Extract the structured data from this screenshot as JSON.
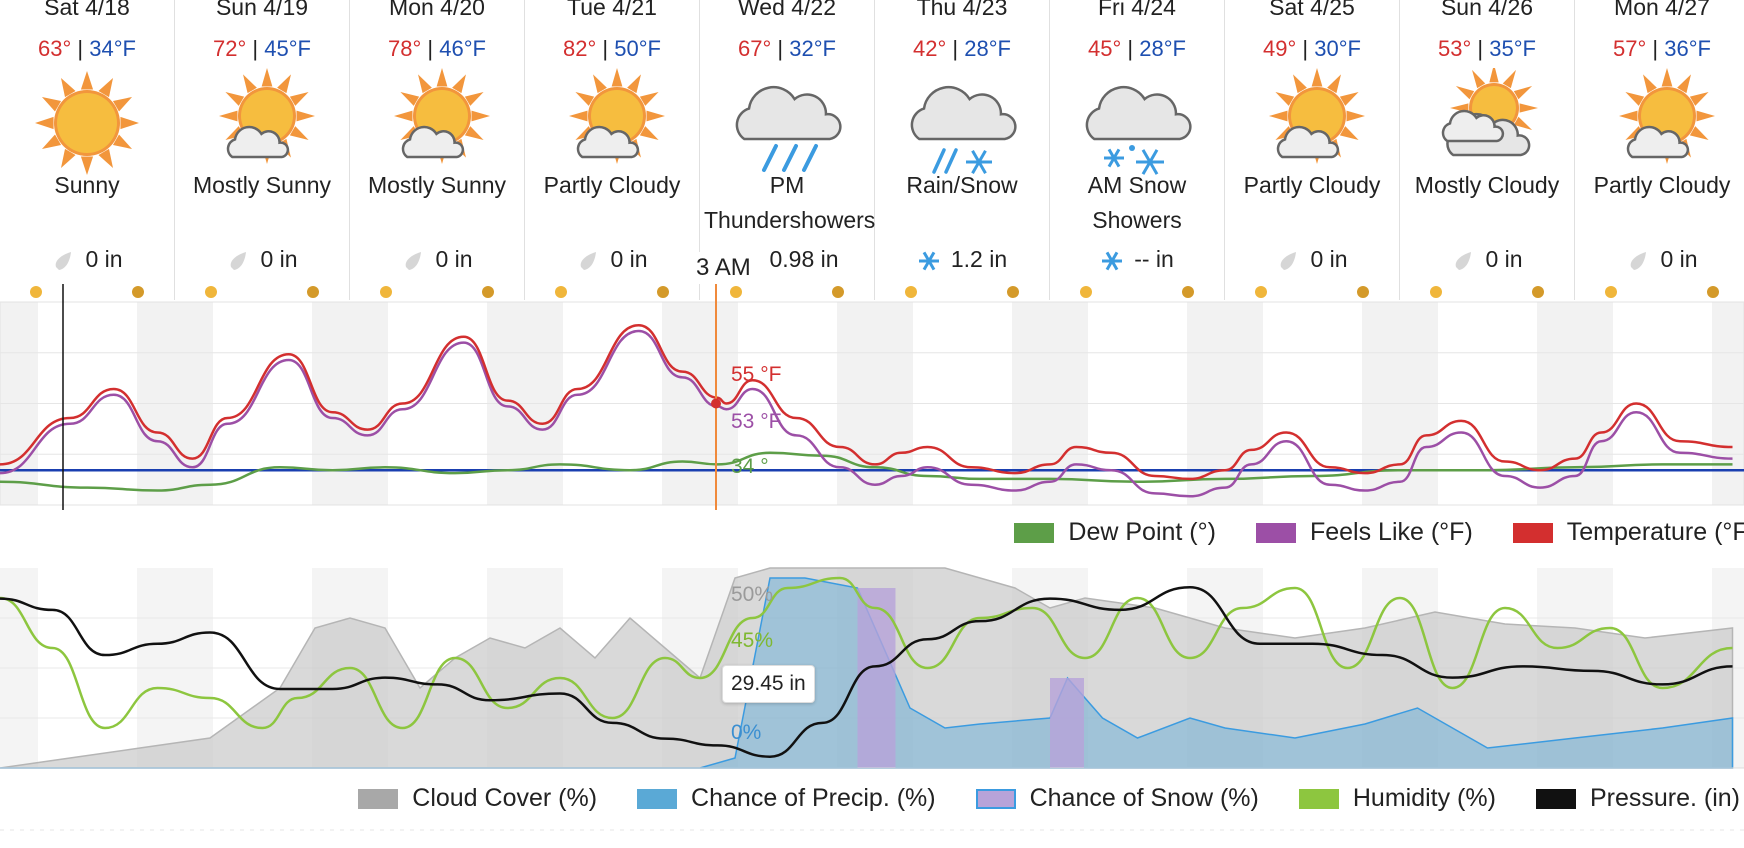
{
  "days": [
    {
      "date": "Sat 4/18",
      "hi": "63°",
      "lo": "34°F",
      "cond": "Sunny",
      "precip": "0 in",
      "icon": "sun-icon",
      "ptype": "rain"
    },
    {
      "date": "Sun 4/19",
      "hi": "72°",
      "lo": "45°F",
      "cond": "Mostly Sunny",
      "precip": "0 in",
      "icon": "sun-cloud-icon",
      "ptype": "rain"
    },
    {
      "date": "Mon 4/20",
      "hi": "78°",
      "lo": "46°F",
      "cond": "Mostly Sunny",
      "precip": "0 in",
      "icon": "sun-cloud-icon",
      "ptype": "rain"
    },
    {
      "date": "Tue 4/21",
      "hi": "82°",
      "lo": "50°F",
      "cond": "Partly Cloudy",
      "precip": "0 in",
      "icon": "sun-cloud-icon",
      "ptype": "rain"
    },
    {
      "date": "Wed 4/22",
      "hi": "67°",
      "lo": "32°F",
      "cond": "PM Thundershowers",
      "precip": "0.98 in",
      "icon": "rain-cloud-icon",
      "ptype": "rain"
    },
    {
      "date": "Thu 4/23",
      "hi": "42°",
      "lo": "28°F",
      "cond": "Rain/Snow",
      "precip": "1.2 in",
      "icon": "rain-snow-icon",
      "ptype": "snow"
    },
    {
      "date": "Fri 4/24",
      "hi": "45°",
      "lo": "28°F",
      "cond": "AM Snow Showers",
      "precip": "-- in",
      "icon": "snow-cloud-icon",
      "ptype": "snow"
    },
    {
      "date": "Sat 4/25",
      "hi": "49°",
      "lo": "30°F",
      "cond": "Partly Cloudy",
      "precip": "0 in",
      "icon": "sun-cloud-icon",
      "ptype": "rain"
    },
    {
      "date": "Sun 4/26",
      "hi": "53°",
      "lo": "35°F",
      "cond": "Mostly Cloudy",
      "precip": "0 in",
      "icon": "cloud-sun-icon",
      "ptype": "rain"
    },
    {
      "date": "Mon 4/27",
      "hi": "57°",
      "lo": "36°F",
      "cond": "Partly Cloudy",
      "precip": "0 in",
      "icon": "sun-cloud-icon",
      "ptype": "rain"
    }
  ],
  "cursor": {
    "time": "3 AM",
    "temp": "55 °F",
    "feels": "53 °F",
    "dew": "34 °",
    "cloud": "50%",
    "humidity": "45%",
    "precip": "0%",
    "pressure": "29.45 in"
  },
  "legend_top": [
    "Dew Point (°)",
    "Feels Like (°F)",
    "Temperature (°F)"
  ],
  "legend_bottom": [
    "Cloud Cover (%)",
    "Chance of Precip. (%)",
    "Chance of Snow (%)",
    "Humidity (%)",
    "Pressure. (in)"
  ],
  "colors": {
    "temp": "#d32f2f",
    "feels": "#9c4fa6",
    "dew": "#5d9e48",
    "freeze": "#1a3fb0",
    "cloud": "#c9c9c9",
    "precip": "#5aa9d6",
    "snow": "#b7a3d9",
    "humidity": "#8dc63f",
    "pressure": "#111111",
    "cursor": "#f08a3c"
  },
  "chart_data": [
    {
      "type": "line",
      "x_unit": "day index (0 = Sat 4/18 00:00)",
      "series": [
        {
          "name": "Temperature (°F)",
          "x": [
            0,
            0.4,
            0.65,
            0.9,
            1.1,
            1.3,
            1.65,
            1.9,
            2.1,
            2.3,
            2.65,
            2.9,
            3.1,
            3.3,
            3.65,
            3.9,
            4.1,
            4.15,
            4.3,
            4.55,
            4.8,
            5.0,
            5.15,
            5.3,
            5.55,
            5.8,
            6.0,
            6.15,
            6.35,
            6.6,
            6.8,
            7.0,
            7.15,
            7.35,
            7.6,
            7.8,
            8.0,
            8.15,
            8.35,
            8.6,
            8.8,
            9.0,
            9.15,
            9.35,
            9.6,
            9.9
          ],
          "y": [
            34,
            50,
            60,
            45,
            36,
            50,
            72,
            52,
            46,
            55,
            78,
            56,
            48,
            60,
            82,
            66,
            57,
            55,
            63,
            50,
            40,
            34,
            38,
            40,
            33,
            31,
            34,
            40,
            38,
            30,
            29,
            32,
            39,
            45,
            33,
            31,
            34,
            44,
            49,
            35,
            32,
            36,
            45,
            55,
            42,
            40
          ]
        },
        {
          "name": "Feels Like (°F)",
          "x": [
            0,
            0.4,
            0.65,
            0.9,
            1.1,
            1.3,
            1.65,
            1.9,
            2.1,
            2.3,
            2.65,
            2.9,
            3.1,
            3.3,
            3.65,
            3.9,
            4.1,
            4.15,
            4.3,
            4.55,
            4.8,
            5.0,
            5.15,
            5.3,
            5.55,
            5.8,
            6.0,
            6.15,
            6.35,
            6.6,
            6.8,
            7.0,
            7.15,
            7.35,
            7.6,
            7.8,
            8.0,
            8.15,
            8.35,
            8.6,
            8.8,
            9.0,
            9.15,
            9.35,
            9.6,
            9.9
          ],
          "y": [
            31,
            48,
            58,
            42,
            33,
            48,
            70,
            50,
            44,
            53,
            76,
            54,
            46,
            58,
            80,
            64,
            54,
            53,
            60,
            44,
            33,
            27,
            30,
            33,
            27,
            25,
            28,
            34,
            32,
            24,
            23,
            26,
            34,
            42,
            27,
            25,
            28,
            40,
            45,
            30,
            26,
            30,
            42,
            52,
            38,
            36
          ]
        },
        {
          "name": "Dew Point (°)",
          "x": [
            0,
            0.5,
            0.9,
            1.2,
            1.6,
            1.9,
            2.2,
            2.6,
            2.9,
            3.2,
            3.6,
            3.9,
            4.1,
            4.4,
            4.7,
            5.0,
            5.3,
            5.6,
            6.0,
            6.5,
            7.0,
            7.5,
            8.0,
            8.5,
            9.0,
            9.5,
            9.9
          ],
          "y": [
            28,
            26,
            25,
            27,
            33,
            32,
            33,
            31,
            32,
            34,
            32,
            35,
            34,
            38,
            37,
            33,
            30,
            29,
            29,
            28,
            29,
            30,
            32,
            32,
            33,
            34,
            34
          ]
        }
      ],
      "reference_line": {
        "name": "freezing",
        "y": 32
      },
      "ylim": [
        20,
        90
      ]
    },
    {
      "type": "area",
      "x_unit": "day index (0 = Sat 4/18 00:00)",
      "series": [
        {
          "name": "Cloud Cover (%)",
          "x": [
            0,
            0.4,
            0.8,
            1.2,
            1.6,
            1.8,
            2.0,
            2.2,
            2.4,
            2.6,
            2.8,
            3.0,
            3.2,
            3.4,
            3.6,
            3.8,
            4.0,
            4.2,
            4.4,
            4.6,
            5.0,
            5.4,
            5.8,
            6.0,
            6.2,
            6.6,
            7.0,
            7.4,
            7.8,
            8.2,
            8.6,
            9.0,
            9.4,
            9.9
          ],
          "y": [
            0,
            5,
            10,
            15,
            40,
            70,
            75,
            70,
            40,
            55,
            65,
            60,
            70,
            55,
            75,
            60,
            45,
            95,
            100,
            100,
            100,
            100,
            90,
            80,
            85,
            80,
            70,
            65,
            70,
            78,
            72,
            70,
            65,
            70
          ]
        },
        {
          "name": "Chance of Precip. (%)",
          "x": [
            0,
            4.0,
            4.2,
            4.4,
            4.6,
            4.9,
            5.0,
            5.2,
            5.4,
            5.6,
            6.0,
            6.1,
            6.3,
            6.5,
            6.8,
            7.0,
            7.4,
            7.8,
            8.1,
            8.5,
            9.0,
            9.5,
            9.9
          ],
          "y": [
            0,
            0,
            5,
            95,
            95,
            90,
            70,
            30,
            20,
            22,
            25,
            45,
            25,
            15,
            25,
            20,
            15,
            22,
            30,
            10,
            15,
            20,
            25
          ]
        },
        {
          "name": "Chance of Snow (%)",
          "x": [
            4.9,
            5.1,
            5.1,
            6.0,
            6.2
          ],
          "y": [
            90,
            90,
            0,
            45,
            0
          ]
        },
        {
          "name": "Humidity (%)",
          "x": [
            0,
            0.3,
            0.6,
            0.9,
            1.2,
            1.5,
            1.7,
            2.0,
            2.3,
            2.6,
            2.9,
            3.2,
            3.5,
            3.8,
            4.0,
            4.3,
            4.5,
            4.8,
            5.0,
            5.3,
            5.6,
            5.9,
            6.2,
            6.5,
            6.8,
            7.1,
            7.4,
            7.7,
            8.0,
            8.3,
            8.6,
            8.9,
            9.2,
            9.5,
            9.9
          ],
          "y": [
            85,
            60,
            20,
            40,
            35,
            20,
            35,
            50,
            20,
            55,
            30,
            45,
            25,
            55,
            45,
            75,
            90,
            95,
            80,
            50,
            75,
            80,
            55,
            85,
            55,
            80,
            90,
            50,
            85,
            40,
            80,
            60,
            70,
            40,
            60
          ]
        },
        {
          "name": "Pressure. (in)",
          "x": [
            0,
            0.3,
            0.6,
            0.9,
            1.2,
            1.6,
            1.9,
            2.2,
            2.5,
            2.8,
            3.2,
            3.5,
            3.8,
            4.1,
            4.4,
            4.7,
            5.0,
            5.3,
            5.6,
            6.0,
            6.4,
            6.8,
            7.2,
            7.5,
            7.9,
            8.3,
            8.7,
            9.1,
            9.5,
            9.9
          ],
          "y": [
            30.1,
            30.05,
            29.85,
            29.9,
            29.95,
            29.7,
            29.7,
            29.75,
            29.72,
            29.65,
            29.68,
            29.55,
            29.48,
            29.45,
            29.4,
            29.55,
            29.8,
            29.92,
            30.0,
            30.1,
            30.05,
            30.15,
            29.9,
            29.9,
            29.85,
            29.75,
            29.8,
            29.78,
            29.72,
            29.8
          ]
        }
      ],
      "ylim": [
        0,
        100
      ]
    }
  ]
}
